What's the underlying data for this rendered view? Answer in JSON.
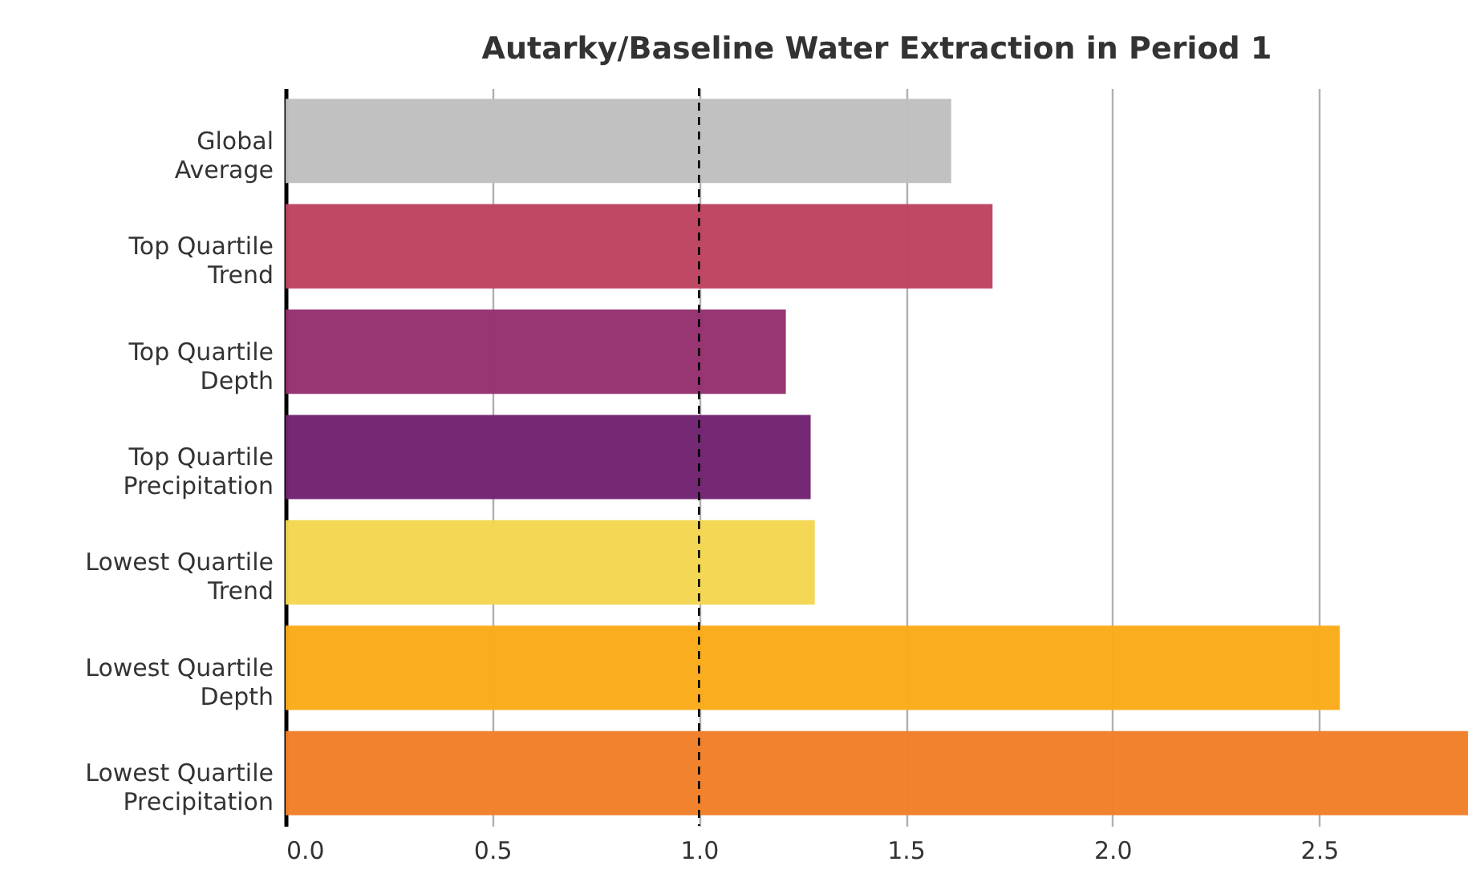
{
  "chart_data": {
    "type": "bar",
    "orientation": "horizontal",
    "title": "Autarky/Baseline Water Extraction in Period 1",
    "categories": [
      "Global Average",
      "Top Quartile Trend",
      "Top Quartile Depth",
      "Top Quartile Precipitation",
      "Lowest Quartile Trend",
      "Lowest Quartile Depth",
      "Lowest Quartile Precipitation"
    ],
    "values": [
      1.61,
      1.71,
      1.21,
      1.27,
      1.28,
      2.55,
      2.86
    ],
    "colors": [
      "#bfbfbf",
      "#bd435f",
      "#95306e",
      "#71226f",
      "#f4d64e",
      "#fbaa19",
      "#f27f27"
    ],
    "xlim": [
      0,
      2.86
    ],
    "xticks": [
      {
        "value": 0,
        "label": "0.0"
      },
      {
        "value": 0.5,
        "label": "0.5"
      },
      {
        "value": 1,
        "label": "1.0"
      },
      {
        "value": 1.5,
        "label": "1.5"
      },
      {
        "value": 2,
        "label": "2.0"
      },
      {
        "value": 2.5,
        "label": "2.5"
      }
    ],
    "grid": "x",
    "ref_lines": [
      {
        "axis": "x",
        "value": 1.0,
        "color": "#000000",
        "line_style": "dashed"
      }
    ]
  }
}
